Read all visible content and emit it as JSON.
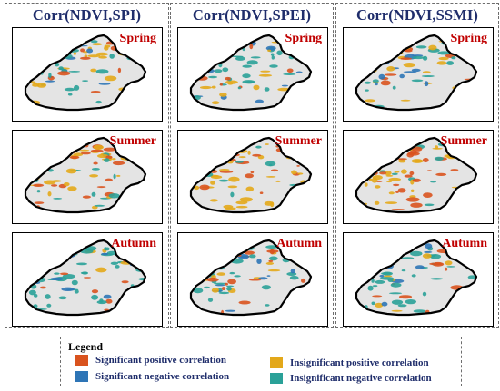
{
  "columns": [
    {
      "title": "Corr(NDVI,SPI)"
    },
    {
      "title": "Corr(NDVI,SPEI)"
    },
    {
      "title": "Corr(NDVI,SSMI)"
    }
  ],
  "seasons": [
    "Spring",
    "Summer",
    "Autumn"
  ],
  "legend": {
    "title": "Legend",
    "items": [
      {
        "label": "Significant positive correlation",
        "color": "#d9531e"
      },
      {
        "label": "Insignificant positive correlation",
        "color": "#e3a81a"
      },
      {
        "label": "Significant negative correlation",
        "color": "#2e75b6"
      },
      {
        "label": "Insignificant negative correlation",
        "color": "#2aa198"
      }
    ]
  },
  "colors": {
    "region_fill": "#e4e4e4",
    "boundary": "#000000",
    "season_text": "#c00000",
    "title_text": "#1f2d6b"
  }
}
